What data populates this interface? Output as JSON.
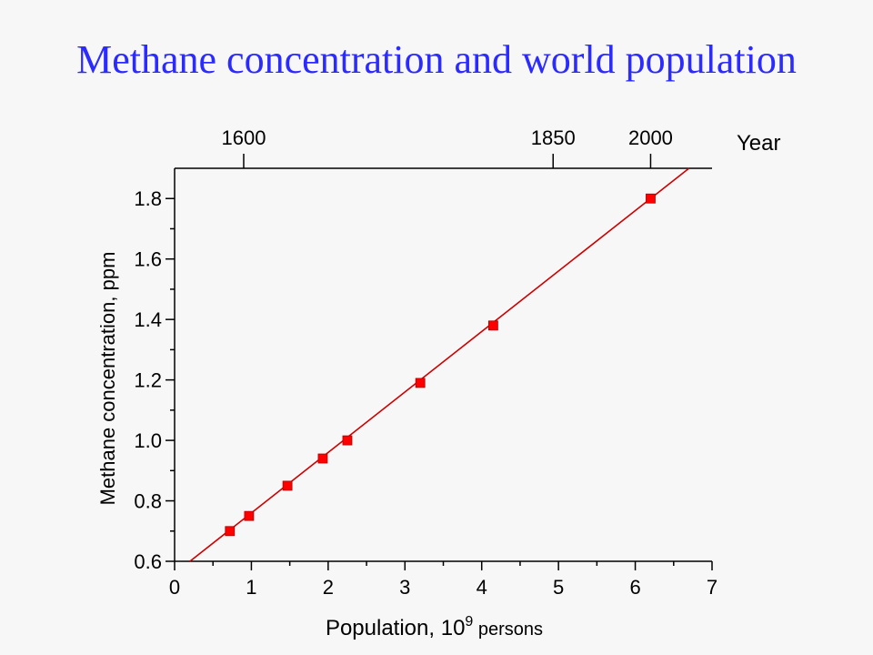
{
  "title": "Methane concentration and world population",
  "chart_data": {
    "type": "scatter",
    "title": "Methane concentration and world population",
    "xlabel": "Population, 10",
    "xlabel_superscript": "9",
    "xlabel_suffix": "persons",
    "ylabel": "Methane concentration, ppm",
    "top_axis_label": "Year",
    "xlim": [
      0,
      7
    ],
    "ylim": [
      0.6,
      1.9
    ],
    "x_ticks": [
      0,
      1,
      2,
      3,
      4,
      5,
      6,
      7
    ],
    "y_ticks": [
      0.6,
      0.8,
      1.0,
      1.2,
      1.4,
      1.6,
      1.8
    ],
    "y_tick_labels": [
      "0.6",
      "0.8",
      "1.0",
      "1.2",
      "1.4",
      "1.6",
      "1.8"
    ],
    "top_ticks": [
      {
        "label": "1600",
        "x": 0.9
      },
      {
        "label": "1850",
        "x": 4.93
      },
      {
        "label": "2000",
        "x": 6.2
      }
    ],
    "series": [
      {
        "color": "#ff0000",
        "x": [
          0.72,
          0.97,
          1.47,
          1.93,
          2.25,
          3.2,
          4.15,
          6.2
        ],
        "y": [
          0.7,
          0.75,
          0.85,
          0.94,
          1.0,
          1.19,
          1.38,
          1.8
        ]
      }
    ],
    "fit_line": {
      "color": "#cc0000",
      "x": [
        0.2,
        6.7
      ],
      "y": [
        0.6,
        1.9
      ]
    },
    "grid": false
  }
}
